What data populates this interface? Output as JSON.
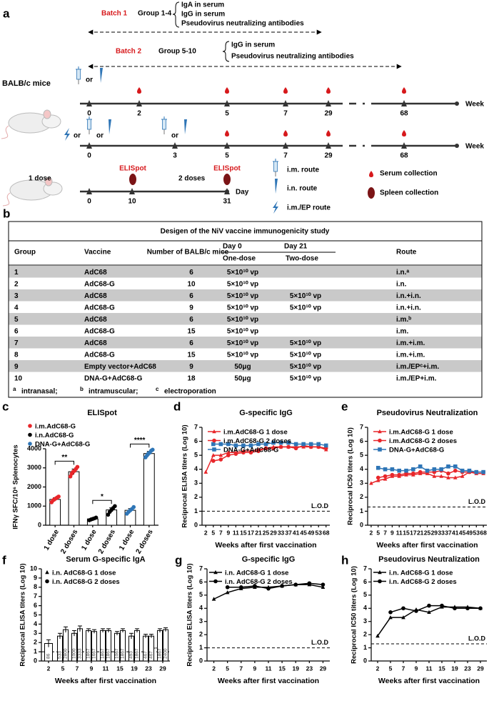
{
  "figure": {
    "panel_a": {
      "label": "a",
      "batch1": {
        "name": "Batch 1",
        "groups": "Group 1-4",
        "readouts": [
          "IgA in serum",
          "IgG in serum",
          "Pseudovirus neutralizing antibodies"
        ]
      },
      "batch2": {
        "name": "Batch 2",
        "groups": "Group 5-10",
        "readouts": [
          "IgG in serum",
          "Pseudovirus neutralizing antibodies"
        ]
      },
      "strain": "BALB/c mice",
      "or": "or",
      "timeline1": {
        "ticks": [
          "0",
          "2",
          "5",
          "7",
          "29",
          "68"
        ],
        "unit": "Week"
      },
      "timeline2": {
        "ticks": [
          "0",
          "3",
          "5",
          "7",
          "29",
          "68"
        ],
        "unit": "Week"
      },
      "timeline3": {
        "ticks": [
          "0",
          "10",
          "31"
        ],
        "unit": "Day",
        "dose1": "1 dose",
        "dose2": "2 doses",
        "assay": "ELISpot"
      },
      "legend": [
        "i.m. route",
        "i.n. route",
        "i.m./EP route",
        "Serum collection",
        "Spleen collection"
      ]
    },
    "panel_b": {
      "label": "b",
      "title": "Desigen of the NiV vaccine immunogenicity study",
      "headers": {
        "group": "Group",
        "vaccine": "Vaccine",
        "mice": "Number of BALB/c mice",
        "day0": "Day 0",
        "day21": "Day 21",
        "one_dose": "One-dose",
        "two_dose": "Two-dose",
        "route": "Route"
      },
      "rows": [
        {
          "group": "1",
          "vaccine": "AdC68",
          "mice": "6",
          "one_dose": "5×10¹⁰ vp",
          "route": "i.n.ᵃ"
        },
        {
          "group": "2",
          "vaccine": "AdC68-G",
          "mice": "10",
          "one_dose": "5×10¹⁰ vp",
          "route": "i.n."
        },
        {
          "group": "3",
          "vaccine": "AdC68",
          "mice": "6",
          "one_dose": "5×10¹⁰ vp",
          "two_dose": "5×10¹⁰ vp",
          "route": "i.n.+i.n."
        },
        {
          "group": "4",
          "vaccine": "AdC68-G",
          "mice": "9",
          "one_dose": "5×10¹⁰ vp",
          "two_dose": "5×10¹⁰ vp",
          "route": "i.n.+i.n."
        },
        {
          "group": "5",
          "vaccine": "AdC68",
          "mice": "6",
          "one_dose": "5×10¹⁰ vp",
          "route": "i.m.ᵇ"
        },
        {
          "group": "6",
          "vaccine": "AdC68-G",
          "mice": "15",
          "one_dose": "5×10¹⁰ vp",
          "route": "i.m."
        },
        {
          "group": "7",
          "vaccine": "AdC68",
          "mice": "6",
          "one_dose": "5×10¹⁰ vp",
          "two_dose": "5×10¹⁰ vp",
          "route": "i.m.+i.m."
        },
        {
          "group": "8",
          "vaccine": "AdC68-G",
          "mice": "15",
          "one_dose": "5×10¹⁰ vp",
          "two_dose": "5×10¹⁰ vp",
          "route": "i.m.+i.m."
        },
        {
          "group": "9",
          "vaccine": "Empty vector+AdC68",
          "mice": "9",
          "one_dose": "50μg",
          "two_dose": "5×10¹⁰ vp",
          "route": "i.m./EPᶜ+i.m."
        },
        {
          "group": "10",
          "vaccine": "DNA-G+AdC68-G",
          "mice": "18",
          "one_dose": "50μg",
          "two_dose": "5×10¹⁰ vp",
          "route": "i.m./EP+i.m."
        }
      ],
      "footnotes": [
        {
          "mark": "a",
          "text": "intranasal;"
        },
        {
          "mark": "b",
          "text": "intramuscular;"
        },
        {
          "mark": "c",
          "text": "electroporation"
        }
      ]
    }
  },
  "chart_data": [
    {
      "label": "c",
      "type": "bar",
      "title": "ELISpot",
      "ylabel": "IFNγ SFC/10⁶ Splenocytes",
      "categories": [
        "1 dose",
        "2 doses",
        "1 dose",
        "2 doses",
        "1 dose",
        "2 doses"
      ],
      "series": [
        {
          "name": "i.m.AdC68-G",
          "color": "#e8262a",
          "marker": "circle",
          "values": [
            1350,
            2800,
            null,
            null,
            null,
            null
          ],
          "errors": [
            90,
            140,
            null,
            null,
            null,
            null
          ],
          "points": [
            [
              1200,
              1300,
              1350,
              1400,
              1450,
              1500
            ],
            [
              2550,
              2700,
              2800,
              2850,
              2950,
              3050
            ],
            null,
            null,
            null,
            null
          ]
        },
        {
          "name": "i.n.AdC68-G",
          "color": "#000000",
          "marker": "circle",
          "values": [
            null,
            null,
            330,
            800,
            null,
            null
          ],
          "errors": [
            null,
            null,
            40,
            110,
            null,
            null
          ],
          "points": [
            null,
            null,
            [
              260,
              300,
              330,
              360,
              400
            ],
            [
              550,
              700,
              800,
              900,
              1000
            ],
            null,
            null
          ]
        },
        {
          "name": "DNA-G+AdC68-G",
          "color": "#2e75b6",
          "marker": "circle",
          "values": [
            null,
            null,
            null,
            null,
            780,
            3750
          ],
          "errors": [
            null,
            null,
            null,
            null,
            90,
            110
          ],
          "points": [
            null,
            null,
            null,
            null,
            [
              600,
              700,
              780,
              850,
              950
            ],
            [
              3550,
              3650,
              3750,
              3800,
              3900,
              3950
            ]
          ]
        }
      ],
      "significance": [
        "**",
        "*",
        "****"
      ],
      "ylim": [
        0,
        4000
      ],
      "yticks": [
        0,
        1000,
        2000,
        3000,
        4000
      ]
    },
    {
      "label": "d",
      "type": "line",
      "title": "G-specific IgG",
      "ylabel": "Reciprocal ELISA titers (Log 10)",
      "xlabel": "Weeks after first vaccination",
      "categories": [
        "2",
        "5",
        "7",
        "9",
        "11",
        "15",
        "17",
        "21",
        "25",
        "29",
        "33",
        "37",
        "41",
        "45",
        "49",
        "53",
        "68"
      ],
      "series": [
        {
          "name": "i.m.AdC68-G 1 dose",
          "color": "#e8262a",
          "marker": "triangle",
          "values": [
            3.8,
            5.0,
            5.0,
            5.2,
            5.2,
            5.3,
            5.3,
            5.4,
            5.5,
            5.6,
            5.6,
            5.6,
            5.6,
            5.6,
            5.6,
            5.6,
            5.4
          ]
        },
        {
          "name": "i.m.AdC68-G 2 doses",
          "color": "#e8262a",
          "marker": "circle",
          "values": [
            null,
            4.6,
            4.7,
            5.0,
            5.1,
            5.2,
            5.2,
            5.3,
            5.5,
            5.5,
            5.6,
            5.6,
            5.5,
            5.7,
            5.6,
            5.6,
            5.5
          ]
        },
        {
          "name": "DNA-G+AdC68-G",
          "color": "#2e75b6",
          "marker": "square",
          "values": [
            null,
            5.8,
            5.8,
            5.8,
            5.7,
            5.7,
            5.7,
            5.8,
            5.8,
            5.9,
            5.9,
            5.9,
            5.8,
            5.8,
            5.8,
            5.8,
            5.7
          ]
        }
      ],
      "lod": {
        "value": 1,
        "label": "L.O.D"
      },
      "ylim": [
        0,
        7
      ],
      "yticks": [
        0,
        1,
        2,
        3,
        4,
        5,
        6,
        7
      ]
    },
    {
      "label": "e",
      "type": "line",
      "title": "Pseudovirus Neutralization",
      "ylabel": "Reciprocal IC50 titers (Log 10)",
      "xlabel": "Weeks after first vaccination",
      "categories": [
        "2",
        "5",
        "7",
        "9",
        "11",
        "15",
        "17",
        "21",
        "25",
        "29",
        "33",
        "37",
        "41",
        "45",
        "49",
        "53",
        "68"
      ],
      "series": [
        {
          "name": "i.m.AdC68-G 1 dose",
          "color": "#e8262a",
          "marker": "triangle",
          "values": [
            3.0,
            3.2,
            3.3,
            3.5,
            3.5,
            3.6,
            3.6,
            3.7,
            3.7,
            3.5,
            3.5,
            3.4,
            3.4,
            3.5,
            3.8,
            3.7,
            3.7
          ]
        },
        {
          "name": "i.m.AdC68-G 2 doses",
          "color": "#e8262a",
          "marker": "circle",
          "values": [
            null,
            3.4,
            3.5,
            3.6,
            3.6,
            3.7,
            3.7,
            3.8,
            3.8,
            3.8,
            3.9,
            3.7,
            3.9,
            3.8,
            3.8,
            3.8,
            3.8
          ]
        },
        {
          "name": "DNA-G+AdC68-G",
          "color": "#2e75b6",
          "marker": "square",
          "values": [
            null,
            4.1,
            4.0,
            4.0,
            3.9,
            3.9,
            4.0,
            4.2,
            3.9,
            4.0,
            4.0,
            4.2,
            4.2,
            3.9,
            3.9,
            3.8,
            3.8
          ]
        }
      ],
      "lod": {
        "value": 1.3,
        "label": "L.O.D"
      },
      "ylim": [
        0,
        7
      ],
      "yticks": [
        0,
        1,
        2,
        3,
        4,
        5,
        6,
        7
      ]
    },
    {
      "label": "f",
      "type": "bar",
      "title": "Serum G-specific IgA",
      "ylabel": "Reciprocal ELISA titers (Log 10)",
      "xlabel": "Weeks after first vaccination",
      "categories": [
        "2",
        "5",
        "7",
        "9",
        "11",
        "15",
        "19",
        "23",
        "29"
      ],
      "series": [
        {
          "name": "i.n. AdC68-G 1 dose",
          "color": "#000000",
          "marker": "triangle",
          "values": [
            1.9,
            2.7,
            3.0,
            3.3,
            3.3,
            3.0,
            2.7,
            2.7,
            3.3
          ],
          "errors": [
            0.4,
            0.3,
            0.3,
            0.2,
            0.2,
            0.2,
            0.3,
            0.2,
            0.2
          ],
          "titer_labels": [
            "86",
            "533",
            "1000",
            "1867",
            "1867",
            "1067",
            "493",
            "467",
            "1867"
          ]
        },
        {
          "name": "i.n. AdC68-G 2 doses",
          "color": "#000000",
          "marker": "circle",
          "values": [
            null,
            3.4,
            3.5,
            3.2,
            3.3,
            3.3,
            3.3,
            2.7,
            3.4
          ],
          "errors": [
            null,
            0.3,
            0.3,
            0.2,
            0.2,
            0.2,
            0.2,
            0.2,
            0.2
          ],
          "titer_labels": [
            null,
            "2800",
            "3333",
            "1667",
            "1867",
            "1867",
            "1867",
            "467",
            "2400"
          ]
        }
      ],
      "lod": {
        "value": 1,
        "label": "L.O.D"
      },
      "ylim": [
        0,
        10
      ],
      "yticks": [
        0,
        1,
        2,
        3,
        4,
        5,
        6,
        7,
        8,
        9,
        10
      ]
    },
    {
      "label": "g",
      "type": "line",
      "title": "G-specific IgG",
      "ylabel": "Reciprocal ELISA titers (Log 10)",
      "xlabel": "Weeks after first vaccination",
      "categories": [
        "2",
        "5",
        "7",
        "9",
        "11",
        "15",
        "19",
        "23",
        "29"
      ],
      "series": [
        {
          "name": "i.n. AdC68-G 1 dose",
          "color": "#000000",
          "marker": "triangle",
          "values": [
            4.7,
            5.2,
            5.5,
            5.6,
            5.6,
            5.7,
            5.8,
            5.8,
            5.6
          ]
        },
        {
          "name": "i.n. AdC68-G 2 doses",
          "color": "#000000",
          "marker": "circle",
          "values": [
            null,
            5.6,
            5.6,
            5.7,
            5.5,
            5.7,
            5.8,
            5.9,
            5.8
          ]
        }
      ],
      "lod": {
        "value": 1,
        "label": "L.O.D"
      },
      "ylim": [
        0,
        7
      ],
      "yticks": [
        0,
        1,
        2,
        3,
        4,
        5,
        6,
        7
      ]
    },
    {
      "label": "h",
      "type": "line",
      "title": "Pseudovirus Neutralization",
      "ylabel": "Reciprocal IC50 titers (Log 10)",
      "xlabel": "Weeks after first vaccination",
      "categories": [
        "2",
        "5",
        "7",
        "9",
        "11",
        "15",
        "19",
        "23",
        "29"
      ],
      "series": [
        {
          "name": "i.n. AdC68-G 1 dose",
          "color": "#000000",
          "marker": "triangle",
          "values": [
            1.9,
            3.3,
            3.3,
            3.9,
            3.7,
            4.1,
            4.1,
            4.1,
            4.0
          ]
        },
        {
          "name": "i.n. AdC68-G 2 doses",
          "color": "#000000",
          "marker": "circle",
          "values": [
            null,
            3.7,
            4.0,
            3.8,
            4.2,
            4.2,
            4.0,
            4.0,
            4.0
          ]
        }
      ],
      "lod": {
        "value": 1.3,
        "label": "L.O.D"
      },
      "ylim": [
        0,
        7
      ],
      "yticks": [
        0,
        1,
        2,
        3,
        4,
        5,
        6,
        7
      ]
    }
  ]
}
